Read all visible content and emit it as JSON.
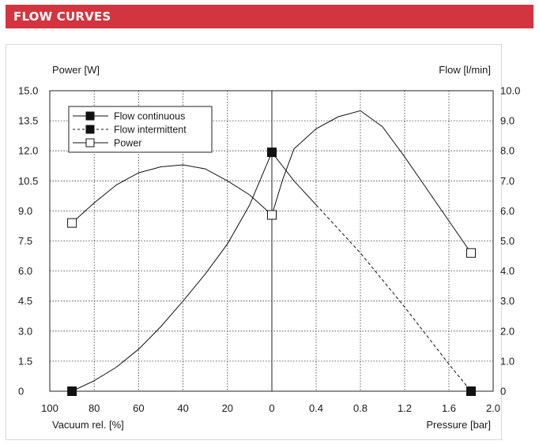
{
  "header": {
    "title": "FLOW CURVES",
    "color": "#d2353f"
  },
  "chart_data": {
    "type": "line",
    "left_axis_label": "Power [W]",
    "right_axis_label": "Flow [l/min]",
    "bottom_left_label": "Vacuum rel. [%]",
    "bottom_right_label": "Pressure [bar]",
    "left_ticks": [
      "15.0",
      "13.5",
      "12.0",
      "10.5",
      "9.0",
      "7.5",
      "6.0",
      "4.5",
      "3.0",
      "1.5",
      "0"
    ],
    "right_ticks": [
      "10.0",
      "9.0",
      "8.0",
      "7.0",
      "6.0",
      "5.0",
      "4.0",
      "3.0",
      "2.0",
      "1.0",
      "0"
    ],
    "vacuum_ticks": [
      "100",
      "80",
      "60",
      "40",
      "20",
      "0"
    ],
    "pressure_ticks": [
      "0.4",
      "0.8",
      "1.2",
      "1.6",
      "2.0"
    ],
    "x_axis_note": "Left half: vacuum relative % (100 to 0); right half: pressure bar (0 to 2.0)",
    "ylim_left": [
      0,
      15
    ],
    "ylim_right": [
      0,
      10
    ],
    "grid": true,
    "legend": [
      {
        "label": "Flow continuous",
        "style": "solid-filled-square"
      },
      {
        "label": "Flow intermittent",
        "style": "dashed-filled-square"
      },
      {
        "label": "Power",
        "style": "solid-open-square"
      }
    ],
    "series": [
      {
        "name": "Flow continuous",
        "axis": "right",
        "points": [
          {
            "domain": "vacuum",
            "x": 90,
            "y": 0.0
          },
          {
            "domain": "vacuum",
            "x": 80,
            "y": 0.35
          },
          {
            "domain": "vacuum",
            "x": 70,
            "y": 0.8
          },
          {
            "domain": "vacuum",
            "x": 60,
            "y": 1.4
          },
          {
            "domain": "vacuum",
            "x": 50,
            "y": 2.15
          },
          {
            "domain": "vacuum",
            "x": 40,
            "y": 3.0
          },
          {
            "domain": "vacuum",
            "x": 30,
            "y": 3.9
          },
          {
            "domain": "vacuum",
            "x": 20,
            "y": 4.9
          },
          {
            "domain": "vacuum",
            "x": 10,
            "y": 6.2
          },
          {
            "domain": "vacuum",
            "x": 0,
            "y": 7.95
          },
          {
            "domain": "pressure",
            "x": 0.2,
            "y": 7.0
          },
          {
            "domain": "pressure",
            "x": 0.4,
            "y": 6.2
          }
        ]
      },
      {
        "name": "Flow intermittent",
        "axis": "right",
        "points": [
          {
            "domain": "pressure",
            "x": 0.4,
            "y": 6.2
          },
          {
            "domain": "pressure",
            "x": 0.8,
            "y": 4.6
          },
          {
            "domain": "pressure",
            "x": 1.2,
            "y": 2.8
          },
          {
            "domain": "pressure",
            "x": 1.6,
            "y": 0.9
          },
          {
            "domain": "pressure",
            "x": 1.8,
            "y": 0.0
          }
        ]
      },
      {
        "name": "Power",
        "axis": "left",
        "points": [
          {
            "domain": "vacuum",
            "x": 90,
            "y": 8.4
          },
          {
            "domain": "vacuum",
            "x": 80,
            "y": 9.4
          },
          {
            "domain": "vacuum",
            "x": 70,
            "y": 10.3
          },
          {
            "domain": "vacuum",
            "x": 60,
            "y": 10.9
          },
          {
            "domain": "vacuum",
            "x": 50,
            "y": 11.2
          },
          {
            "domain": "vacuum",
            "x": 40,
            "y": 11.3
          },
          {
            "domain": "vacuum",
            "x": 30,
            "y": 11.1
          },
          {
            "domain": "vacuum",
            "x": 20,
            "y": 10.5
          },
          {
            "domain": "vacuum",
            "x": 10,
            "y": 9.8
          },
          {
            "domain": "vacuum",
            "x": 0,
            "y": 8.8
          },
          {
            "domain": "pressure",
            "x": 0.1,
            "y": 10.6
          },
          {
            "domain": "pressure",
            "x": 0.2,
            "y": 12.1
          },
          {
            "domain": "pressure",
            "x": 0.4,
            "y": 13.1
          },
          {
            "domain": "pressure",
            "x": 0.6,
            "y": 13.7
          },
          {
            "domain": "pressure",
            "x": 0.8,
            "y": 14.0
          },
          {
            "domain": "pressure",
            "x": 1.0,
            "y": 13.2
          },
          {
            "domain": "pressure",
            "x": 1.2,
            "y": 11.7
          },
          {
            "domain": "pressure",
            "x": 1.4,
            "y": 10.1
          },
          {
            "domain": "pressure",
            "x": 1.6,
            "y": 8.5
          },
          {
            "domain": "pressure",
            "x": 1.8,
            "y": 6.9
          }
        ]
      }
    ],
    "markers": [
      {
        "series": "Flow continuous",
        "domain": "vacuum",
        "x": 90,
        "y": 0.0,
        "fill": "#111111"
      },
      {
        "series": "Flow continuous",
        "domain": "vacuum",
        "x": 0,
        "y": 7.95,
        "fill": "#111111"
      },
      {
        "series": "Flow intermittent",
        "domain": "pressure",
        "x": 1.8,
        "y": 0.0,
        "fill": "#111111"
      },
      {
        "series": "Power",
        "domain": "vacuum",
        "x": 90,
        "y": 8.4,
        "fill": "#ffffff"
      },
      {
        "series": "Power",
        "domain": "vacuum",
        "x": 0,
        "y": 8.8,
        "fill": "#ffffff"
      },
      {
        "series": "Power",
        "domain": "pressure",
        "x": 1.8,
        "y": 6.9,
        "fill": "#ffffff"
      }
    ]
  }
}
